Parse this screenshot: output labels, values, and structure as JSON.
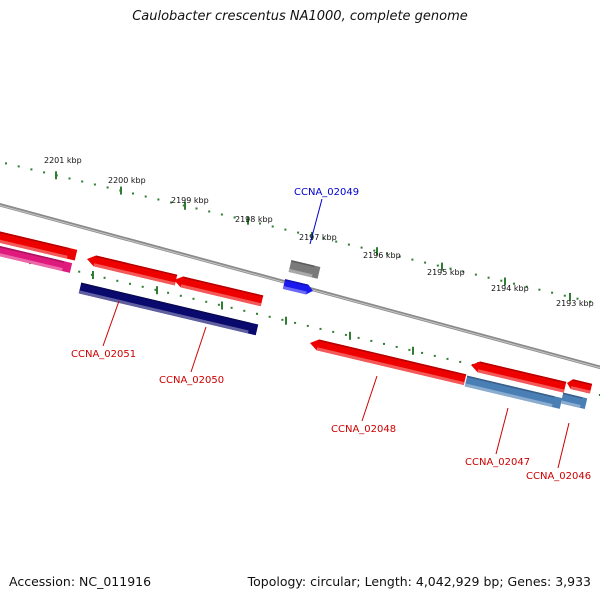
{
  "title": "Caulobacter crescentus NA1000, complete genome",
  "footer": {
    "accession": "Accession: NC_011916",
    "summary": "Topology: circular; Length: 4,042,929 bp; Genes: 3,933"
  },
  "colors": {
    "backbone": "#8a8a8a",
    "scale_ticks": "#2e7d32",
    "forward_gene": "#ee0000",
    "label_text": "#cc0000",
    "highlight_label": "#0000cc",
    "pink_feature": "#e0197c",
    "navy_feature": "#0a0a6e",
    "steel_feature": "#4a7fb5",
    "gray_feature": "#7a7a7a",
    "blue_feature": "#1a1aee"
  },
  "scale_labels": [
    "2201 kbp",
    "2200 kbp",
    "2199 kbp",
    "2198 kbp",
    "2197 kbp",
    "2196 kbp",
    "2195 kbp",
    "2194 kbp",
    "2193 kbp"
  ],
  "gene_labels": [
    {
      "id": "CCNA_02049",
      "kind": "highlight"
    },
    {
      "id": "CCNA_02051",
      "kind": "normal"
    },
    {
      "id": "CCNA_02050",
      "kind": "normal"
    },
    {
      "id": "CCNA_02048",
      "kind": "normal"
    },
    {
      "id": "CCNA_02047",
      "kind": "normal"
    },
    {
      "id": "CCNA_02046",
      "kind": "normal"
    }
  ]
}
